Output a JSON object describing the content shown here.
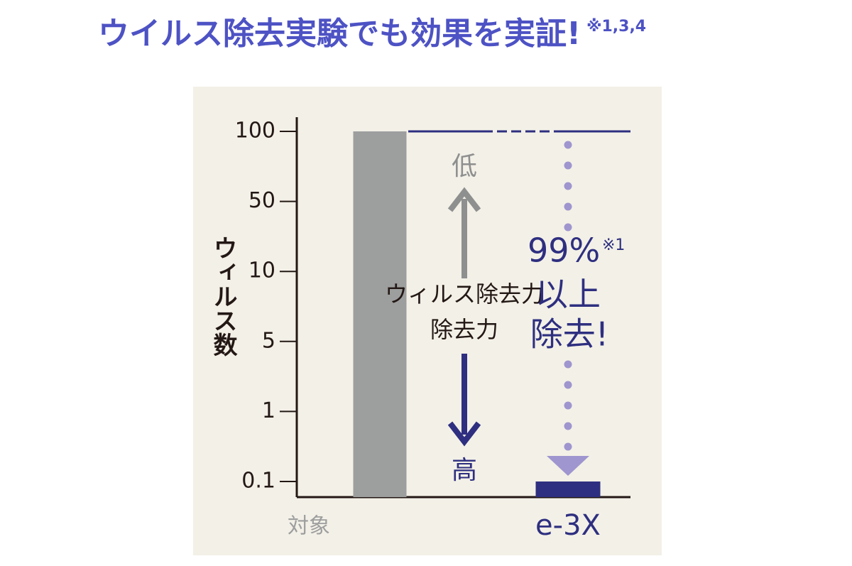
{
  "chart_data": {
    "type": "bar",
    "title": "ウイルス除去実験でも効果を実証!",
    "title_note": "※1,3,4",
    "y_label": "ウィルス数",
    "categories": [
      "対象",
      "e-3X"
    ],
    "values": [
      100,
      0.1
    ],
    "colors": [
      "#9d9e9e",
      "#2e2f80"
    ],
    "ylim": [
      0,
      100
    ],
    "yticks": [
      0.1,
      1,
      5,
      10,
      50,
      100
    ],
    "annotations": {
      "low": "低",
      "power_1": "ウィルス除去力",
      "power_2": "除去力",
      "high": "高",
      "percent": "99%",
      "percent_note": "※1",
      "above": "以上",
      "removed": "除去!"
    }
  }
}
